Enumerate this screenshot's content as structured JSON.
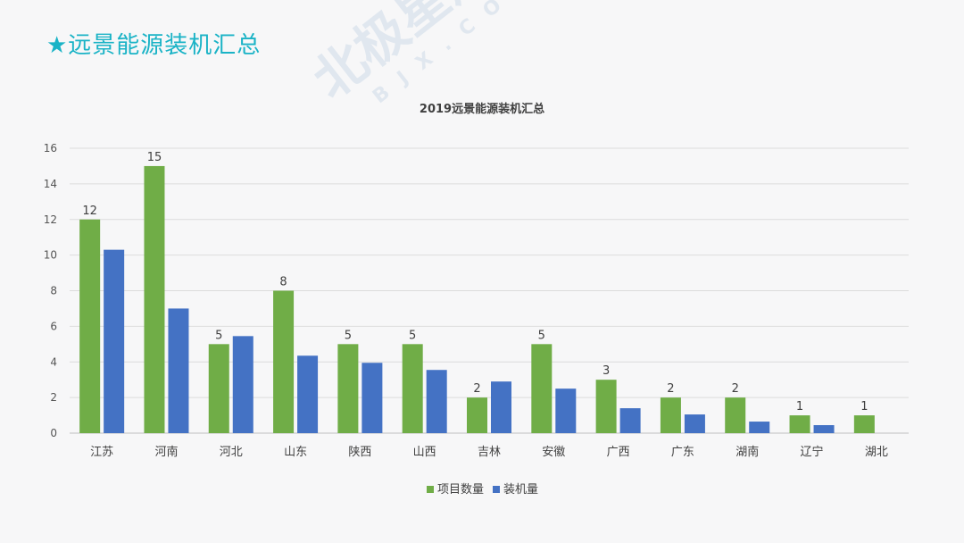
{
  "page": {
    "title": "★远景能源装机汇总"
  },
  "watermark": {
    "main": "北极星风力发电网",
    "sub": "BJX.COM.CN"
  },
  "colors": {
    "series1": "#70ad47",
    "series2": "#4472c4",
    "title": "#1ab3c6"
  },
  "chart_data": {
    "type": "bar",
    "title": "2019远景能源装机汇总",
    "categories": [
      "江苏",
      "河南",
      "河北",
      "山东",
      "陕西",
      "山西",
      "吉林",
      "安徽",
      "广西",
      "广东",
      "湖南",
      "辽宁",
      "湖北"
    ],
    "series": [
      {
        "name": "项目数量",
        "values": [
          12,
          15,
          5,
          8,
          5,
          5,
          2,
          5,
          3,
          2,
          2,
          1,
          1
        ],
        "labels": [
          "12",
          "15",
          "5",
          "8",
          "5",
          "5",
          "2",
          "5",
          "3",
          "2",
          "2",
          "1",
          "1"
        ]
      },
      {
        "name": "装机量",
        "values": [
          10.3,
          7.0,
          5.45,
          4.35,
          3.95,
          3.55,
          2.9,
          2.5,
          1.4,
          1.05,
          0.65,
          0.45,
          0
        ]
      }
    ],
    "ylim": [
      0,
      16
    ],
    "yticks": [
      "0",
      "2",
      "4",
      "6",
      "8",
      "10",
      "12",
      "14",
      "16"
    ],
    "grid": true,
    "legend_position": "bottom"
  }
}
